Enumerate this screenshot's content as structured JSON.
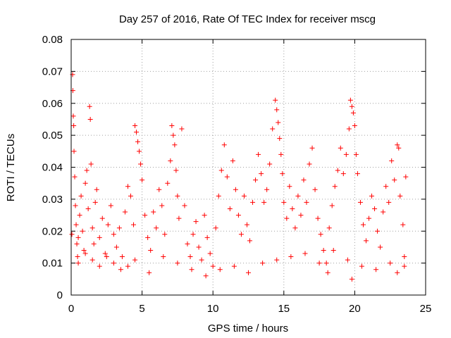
{
  "chart_data": {
    "type": "scatter",
    "title": "Day 257 of 2016, Rate Of TEC Index for receiver mscg",
    "xlabel": "GPS time / hours",
    "ylabel": "ROTI / TECUs",
    "xlim": [
      0,
      25
    ],
    "ylim": [
      0,
      0.08
    ],
    "xticks": [
      0,
      5,
      10,
      15,
      20,
      25
    ],
    "xtick_labels": [
      "0",
      "5",
      "10",
      "15",
      "20",
      "25"
    ],
    "yticks": [
      0,
      0.01,
      0.02,
      0.03,
      0.04,
      0.05,
      0.06,
      0.07,
      0.08
    ],
    "ytick_labels": [
      "0",
      "0.01",
      "0.02",
      "0.03",
      "0.04",
      "0.05",
      "0.06",
      "0.07",
      "0.08"
    ],
    "grid": true,
    "marker": "plus",
    "marker_color": "#ff0000",
    "series": [
      {
        "name": "ROTI",
        "points": [
          [
            0.05,
            0.019
          ],
          [
            0.1,
            0.069
          ],
          [
            0.12,
            0.064
          ],
          [
            0.15,
            0.056
          ],
          [
            0.18,
            0.053
          ],
          [
            0.2,
            0.045
          ],
          [
            0.25,
            0.037
          ],
          [
            0.3,
            0.028
          ],
          [
            0.35,
            0.022
          ],
          [
            0.4,
            0.016
          ],
          [
            0.45,
            0.012
          ],
          [
            0.5,
            0.018
          ],
          [
            0.6,
            0.025
          ],
          [
            0.7,
            0.031
          ],
          [
            0.8,
            0.02
          ],
          [
            0.9,
            0.014
          ],
          [
            1.0,
            0.035
          ],
          [
            1.1,
            0.039
          ],
          [
            1.2,
            0.027
          ],
          [
            1.3,
            0.059
          ],
          [
            1.35,
            0.055
          ],
          [
            1.4,
            0.041
          ],
          [
            1.5,
            0.021
          ],
          [
            1.6,
            0.016
          ],
          [
            1.7,
            0.029
          ],
          [
            1.8,
            0.033
          ],
          [
            2.0,
            0.018
          ],
          [
            2.2,
            0.024
          ],
          [
            2.4,
            0.013
          ],
          [
            2.6,
            0.022
          ],
          [
            2.8,
            0.028
          ],
          [
            3.0,
            0.019
          ],
          [
            3.2,
            0.015
          ],
          [
            3.4,
            0.021
          ],
          [
            3.6,
            0.012
          ],
          [
            3.8,
            0.026
          ],
          [
            4.0,
            0.034
          ],
          [
            4.2,
            0.031
          ],
          [
            4.4,
            0.022
          ],
          [
            4.5,
            0.053
          ],
          [
            4.6,
            0.051
          ],
          [
            4.7,
            0.048
          ],
          [
            4.8,
            0.045
          ],
          [
            4.9,
            0.041
          ],
          [
            5.0,
            0.036
          ],
          [
            5.2,
            0.025
          ],
          [
            5.4,
            0.018
          ],
          [
            5.6,
            0.014
          ],
          [
            5.8,
            0.026
          ],
          [
            6.0,
            0.021
          ],
          [
            6.2,
            0.033
          ],
          [
            6.4,
            0.028
          ],
          [
            6.6,
            0.019
          ],
          [
            6.8,
            0.035
          ],
          [
            7.0,
            0.042
          ],
          [
            7.1,
            0.053
          ],
          [
            7.2,
            0.05
          ],
          [
            7.3,
            0.047
          ],
          [
            7.4,
            0.039
          ],
          [
            7.5,
            0.031
          ],
          [
            7.6,
            0.024
          ],
          [
            7.8,
            0.052
          ],
          [
            8.0,
            0.028
          ],
          [
            8.2,
            0.016
          ],
          [
            8.4,
            0.012
          ],
          [
            8.6,
            0.019
          ],
          [
            8.8,
            0.023
          ],
          [
            9.0,
            0.015
          ],
          [
            9.2,
            0.011
          ],
          [
            9.4,
            0.025
          ],
          [
            9.6,
            0.018
          ],
          [
            9.8,
            0.013
          ],
          [
            10.0,
            0.009
          ],
          [
            10.2,
            0.021
          ],
          [
            10.4,
            0.031
          ],
          [
            10.6,
            0.039
          ],
          [
            10.8,
            0.047
          ],
          [
            11.0,
            0.037
          ],
          [
            11.2,
            0.027
          ],
          [
            11.4,
            0.042
          ],
          [
            11.6,
            0.033
          ],
          [
            11.8,
            0.025
          ],
          [
            12.0,
            0.019
          ],
          [
            12.2,
            0.031
          ],
          [
            12.4,
            0.022
          ],
          [
            12.6,
            0.017
          ],
          [
            12.8,
            0.029
          ],
          [
            13.0,
            0.036
          ],
          [
            13.2,
            0.044
          ],
          [
            13.4,
            0.038
          ],
          [
            13.6,
            0.029
          ],
          [
            13.8,
            0.033
          ],
          [
            14.0,
            0.041
          ],
          [
            14.2,
            0.052
          ],
          [
            14.4,
            0.061
          ],
          [
            14.5,
            0.058
          ],
          [
            14.6,
            0.054
          ],
          [
            14.7,
            0.049
          ],
          [
            14.8,
            0.044
          ],
          [
            14.9,
            0.038
          ],
          [
            15.0,
            0.029
          ],
          [
            15.2,
            0.024
          ],
          [
            15.4,
            0.034
          ],
          [
            15.6,
            0.027
          ],
          [
            15.8,
            0.021
          ],
          [
            16.0,
            0.031
          ],
          [
            16.2,
            0.025
          ],
          [
            16.4,
            0.036
          ],
          [
            16.6,
            0.029
          ],
          [
            16.8,
            0.041
          ],
          [
            17.0,
            0.046
          ],
          [
            17.2,
            0.033
          ],
          [
            17.4,
            0.024
          ],
          [
            17.6,
            0.019
          ],
          [
            17.8,
            0.014
          ],
          [
            18.0,
            0.01
          ],
          [
            18.1,
            0.007
          ],
          [
            18.2,
            0.021
          ],
          [
            18.4,
            0.028
          ],
          [
            18.6,
            0.034
          ],
          [
            18.8,
            0.039
          ],
          [
            19.0,
            0.046
          ],
          [
            19.2,
            0.038
          ],
          [
            19.4,
            0.044
          ],
          [
            19.6,
            0.052
          ],
          [
            19.7,
            0.061
          ],
          [
            19.8,
            0.059
          ],
          [
            19.9,
            0.057
          ],
          [
            20.0,
            0.053
          ],
          [
            20.1,
            0.044
          ],
          [
            20.2,
            0.038
          ],
          [
            20.4,
            0.029
          ],
          [
            20.6,
            0.022
          ],
          [
            20.8,
            0.017
          ],
          [
            21.0,
            0.024
          ],
          [
            21.2,
            0.031
          ],
          [
            21.4,
            0.027
          ],
          [
            21.6,
            0.02
          ],
          [
            21.8,
            0.015
          ],
          [
            22.0,
            0.026
          ],
          [
            22.2,
            0.034
          ],
          [
            22.4,
            0.029
          ],
          [
            22.6,
            0.042
          ],
          [
            22.8,
            0.036
          ],
          [
            23.0,
            0.047
          ],
          [
            23.1,
            0.046
          ],
          [
            23.2,
            0.031
          ],
          [
            23.4,
            0.022
          ],
          [
            23.5,
            0.012
          ],
          [
            23.6,
            0.037
          ],
          [
            0.5,
            0.01
          ],
          [
            1.0,
            0.013
          ],
          [
            1.5,
            0.011
          ],
          [
            2.0,
            0.009
          ],
          [
            2.5,
            0.012
          ],
          [
            3.0,
            0.01
          ],
          [
            3.5,
            0.008
          ],
          [
            4.0,
            0.009
          ],
          [
            4.5,
            0.011
          ],
          [
            5.5,
            0.007
          ],
          [
            6.5,
            0.012
          ],
          [
            7.5,
            0.01
          ],
          [
            8.5,
            0.008
          ],
          [
            9.5,
            0.006
          ],
          [
            10.5,
            0.008
          ],
          [
            11.5,
            0.009
          ],
          [
            12.5,
            0.007
          ],
          [
            13.5,
            0.01
          ],
          [
            14.5,
            0.011
          ],
          [
            15.5,
            0.012
          ],
          [
            16.5,
            0.013
          ],
          [
            17.5,
            0.01
          ],
          [
            18.5,
            0.014
          ],
          [
            19.5,
            0.011
          ],
          [
            19.8,
            0.005
          ],
          [
            20.5,
            0.009
          ],
          [
            21.5,
            0.008
          ],
          [
            22.5,
            0.01
          ],
          [
            23.0,
            0.007
          ],
          [
            23.5,
            0.009
          ]
        ]
      }
    ]
  }
}
